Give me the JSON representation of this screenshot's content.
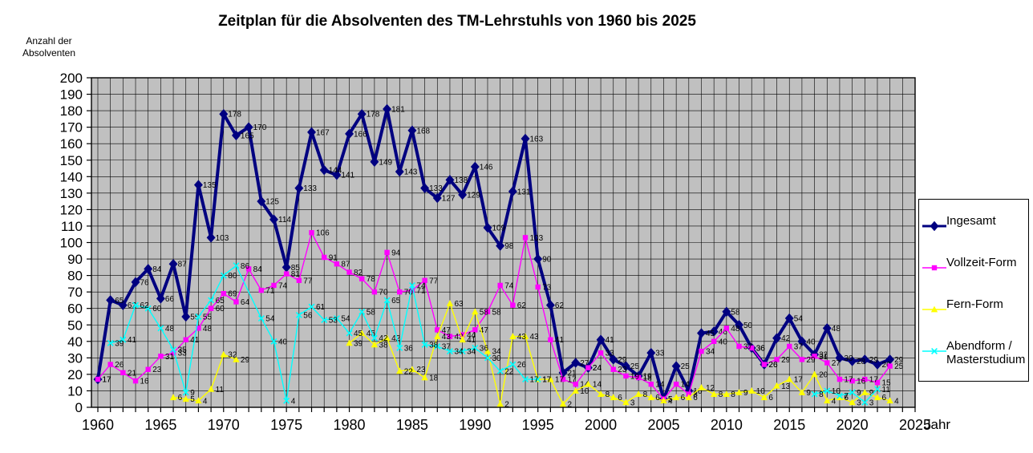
{
  "title": "Zeitplan für die Absolventen des TM-Lehrstuhls von 1960 bis 2025",
  "y_axis_title_line1": "Anzahl der",
  "y_axis_title_line2": "Absolventen",
  "x_axis_title": "Jahr",
  "chart_data": {
    "type": "line",
    "xlim": [
      1960,
      2025
    ],
    "ylim": [
      0,
      200
    ],
    "x_tick_step": 5,
    "y_tick_step": 10,
    "x_tick_labels": [
      1960,
      1965,
      1970,
      1975,
      1980,
      1985,
      1990,
      1995,
      2000,
      2005,
      2010,
      2015,
      2020,
      2025
    ],
    "y_tick_labels": [
      0,
      10,
      20,
      30,
      40,
      50,
      60,
      70,
      80,
      90,
      100,
      110,
      120,
      130,
      140,
      150,
      160,
      170,
      180,
      190,
      200
    ],
    "grid": "yearly vertical and 10-unit horizontal black gridlines on",
    "plot_background": "#c0c0c0",
    "legend_position": "right",
    "show_point_labels": true,
    "series": [
      {
        "name": "Ingesamt",
        "color": "#000080",
        "marker": "diamond",
        "line_width": 4,
        "points": [
          [
            1960,
            17
          ],
          [
            1961,
            65
          ],
          [
            1962,
            62
          ],
          [
            1963,
            76
          ],
          [
            1964,
            84
          ],
          [
            1965,
            66
          ],
          [
            1966,
            87
          ],
          [
            1967,
            55
          ],
          [
            1968,
            135
          ],
          [
            1969,
            103
          ],
          [
            1970,
            178
          ],
          [
            1971,
            165
          ],
          [
            1972,
            170
          ],
          [
            1973,
            125
          ],
          [
            1974,
            114
          ],
          [
            1975,
            85
          ],
          [
            1976,
            133
          ],
          [
            1977,
            167
          ],
          [
            1978,
            144
          ],
          [
            1979,
            141
          ],
          [
            1980,
            166
          ],
          [
            1981,
            178
          ],
          [
            1982,
            149
          ],
          [
            1983,
            181
          ],
          [
            1984,
            143
          ],
          [
            1985,
            168
          ],
          [
            1986,
            133
          ],
          [
            1987,
            127
          ],
          [
            1988,
            138
          ],
          [
            1989,
            129
          ],
          [
            1990,
            146
          ],
          [
            1991,
            109
          ],
          [
            1992,
            98
          ],
          [
            1993,
            131
          ],
          [
            1994,
            163
          ],
          [
            1995,
            90
          ],
          [
            1996,
            62
          ],
          [
            1997,
            21
          ],
          [
            1998,
            27
          ],
          [
            1999,
            24
          ],
          [
            2000,
            41
          ],
          [
            2001,
            29
          ],
          [
            2002,
            25
          ],
          [
            2003,
            19
          ],
          [
            2004,
            33
          ],
          [
            2005,
            5
          ],
          [
            2006,
            25
          ],
          [
            2007,
            10
          ],
          [
            2008,
            45
          ],
          [
            2009,
            46
          ],
          [
            2010,
            58
          ],
          [
            2011,
            50
          ],
          [
            2012,
            36
          ],
          [
            2013,
            26
          ],
          [
            2014,
            42
          ],
          [
            2015,
            54
          ],
          [
            2016,
            40
          ],
          [
            2017,
            32
          ],
          [
            2018,
            48
          ],
          [
            2019,
            30
          ],
          [
            2020,
            28
          ],
          [
            2021,
            29
          ],
          [
            2022,
            26
          ],
          [
            2023,
            29
          ]
        ]
      },
      {
        "name": "Vollzeit-Form",
        "color": "#ff00ff",
        "marker": "square",
        "line_width": 1.4,
        "points": [
          [
            1960,
            17
          ],
          [
            1961,
            26
          ],
          [
            1962,
            21
          ],
          [
            1963,
            16
          ],
          [
            1964,
            23
          ],
          [
            1965,
            31
          ],
          [
            1966,
            33
          ],
          [
            1967,
            41
          ],
          [
            1968,
            48
          ],
          [
            1969,
            60
          ],
          [
            1970,
            69
          ],
          [
            1971,
            64
          ],
          [
            1972,
            84
          ],
          [
            1973,
            71
          ],
          [
            1974,
            74
          ],
          [
            1975,
            81
          ],
          [
            1976,
            77
          ],
          [
            1977,
            106
          ],
          [
            1978,
            91
          ],
          [
            1979,
            87
          ],
          [
            1980,
            82
          ],
          [
            1981,
            78
          ],
          [
            1982,
            70
          ],
          [
            1983,
            94
          ],
          [
            1984,
            70
          ],
          [
            1985,
            71
          ],
          [
            1986,
            77
          ],
          [
            1987,
            47
          ],
          [
            1988,
            43
          ],
          [
            1989,
            44
          ],
          [
            1990,
            47
          ],
          [
            1991,
            58
          ],
          [
            1992,
            74
          ],
          [
            1993,
            62
          ],
          [
            1994,
            103
          ],
          [
            1995,
            73
          ],
          [
            1996,
            41
          ],
          [
            1997,
            17
          ],
          [
            1998,
            14
          ],
          [
            1999,
            24
          ],
          [
            2000,
            33
          ],
          [
            2001,
            23
          ],
          [
            2002,
            19
          ],
          [
            2003,
            18
          ],
          [
            2004,
            14
          ],
          [
            2005,
            5
          ],
          [
            2006,
            14
          ],
          [
            2007,
            8
          ],
          [
            2008,
            34
          ],
          [
            2009,
            40
          ],
          [
            2010,
            48
          ],
          [
            2011,
            37
          ],
          [
            2012,
            36
          ],
          [
            2013,
            26
          ],
          [
            2014,
            29
          ],
          [
            2015,
            37
          ],
          [
            2016,
            29
          ],
          [
            2017,
            31
          ],
          [
            2018,
            27
          ],
          [
            2019,
            17
          ],
          [
            2020,
            16
          ],
          [
            2021,
            17
          ],
          [
            2022,
            15
          ],
          [
            2023,
            25
          ]
        ]
      },
      {
        "name": "Fern-Form",
        "color": "#ffff00",
        "marker": "triangle",
        "line_width": 1.4,
        "points": [
          [
            1966,
            6
          ],
          [
            1967,
            5
          ],
          [
            1968,
            4
          ],
          [
            1969,
            11
          ],
          [
            1970,
            32
          ],
          [
            1971,
            29
          ],
          [
            1980,
            39
          ],
          [
            1981,
            45
          ],
          [
            1982,
            38
          ],
          [
            1983,
            42
          ],
          [
            1984,
            22
          ],
          [
            1985,
            23
          ],
          [
            1986,
            18
          ],
          [
            1987,
            43
          ],
          [
            1988,
            63
          ],
          [
            1989,
            41
          ],
          [
            1990,
            58
          ],
          [
            1991,
            34
          ],
          [
            1992,
            2
          ],
          [
            1993,
            43
          ],
          [
            1994,
            43
          ],
          [
            1995,
            17
          ],
          [
            1996,
            17
          ],
          [
            1997,
            2
          ],
          [
            1998,
            10
          ],
          [
            1999,
            14
          ],
          [
            2000,
            8
          ],
          [
            2001,
            6
          ],
          [
            2002,
            3
          ],
          [
            2003,
            8
          ],
          [
            2004,
            6
          ],
          [
            2005,
            4
          ],
          [
            2006,
            6
          ],
          [
            2007,
            6
          ],
          [
            2008,
            12
          ],
          [
            2009,
            8
          ],
          [
            2010,
            8
          ],
          [
            2011,
            9
          ],
          [
            2012,
            10
          ],
          [
            2013,
            6
          ],
          [
            2014,
            13
          ],
          [
            2015,
            17
          ],
          [
            2016,
            9
          ],
          [
            2017,
            20
          ],
          [
            2018,
            4
          ],
          [
            2019,
            6
          ],
          [
            2020,
            3
          ],
          [
            2021,
            9
          ],
          [
            2022,
            6
          ],
          [
            2023,
            4
          ]
        ]
      },
      {
        "name": "Abendform / Masterstudium",
        "color": "#00ffff",
        "marker": "x",
        "line_width": 1.4,
        "points": [
          [
            1961,
            39
          ],
          [
            1962,
            41
          ],
          [
            1963,
            62
          ],
          [
            1964,
            60
          ],
          [
            1965,
            48
          ],
          [
            1966,
            35
          ],
          [
            1967,
            9
          ],
          [
            1968,
            55
          ],
          [
            1969,
            65
          ],
          [
            1970,
            80
          ],
          [
            1971,
            86
          ],
          [
            1973,
            54
          ],
          [
            1974,
            40
          ],
          [
            1975,
            4
          ],
          [
            1976,
            56
          ],
          [
            1977,
            61
          ],
          [
            1978,
            53
          ],
          [
            1979,
            54
          ],
          [
            1980,
            45
          ],
          [
            1981,
            58
          ],
          [
            1982,
            42
          ],
          [
            1983,
            65
          ],
          [
            1984,
            36
          ],
          [
            1985,
            74
          ],
          [
            1986,
            38
          ],
          [
            1987,
            37
          ],
          [
            1988,
            34
          ],
          [
            1989,
            34
          ],
          [
            1990,
            36
          ],
          [
            1991,
            30
          ],
          [
            1992,
            22
          ],
          [
            1993,
            26
          ],
          [
            1994,
            17
          ],
          [
            1995,
            17
          ],
          [
            2017,
            8
          ],
          [
            2018,
            10
          ],
          [
            2019,
            7
          ],
          [
            2020,
            9
          ],
          [
            2021,
            3
          ],
          [
            2022,
            11
          ]
        ]
      }
    ]
  }
}
